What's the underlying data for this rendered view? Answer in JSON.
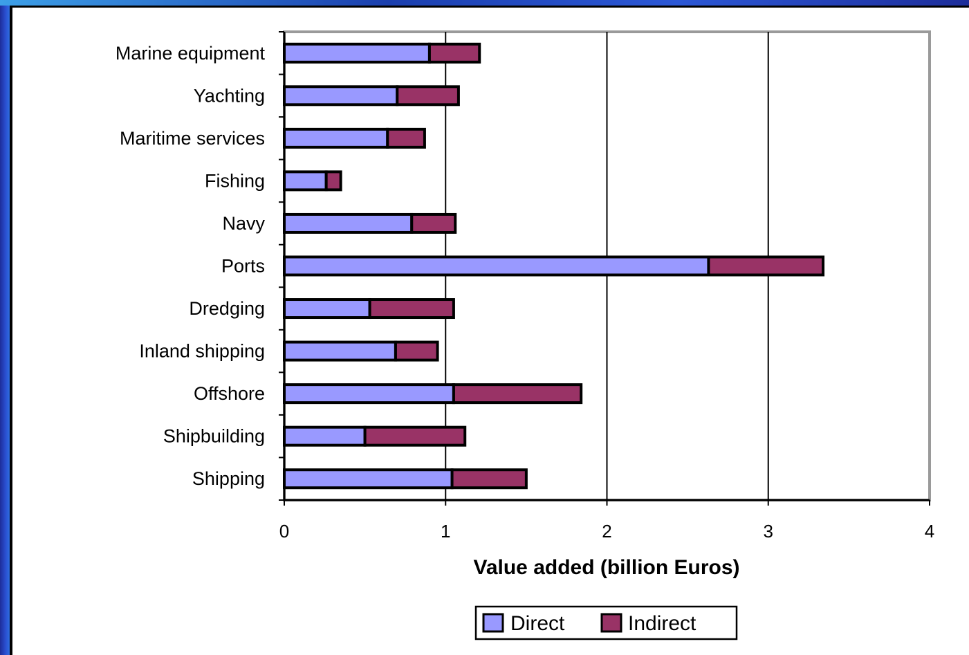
{
  "chart_data": {
    "type": "bar",
    "orientation": "horizontal",
    "stacked": true,
    "categories": [
      "Marine equipment",
      "Yachting",
      "Maritime services",
      "Fishing",
      "Navy",
      "Ports",
      "Dredging",
      "Inland shipping",
      "Offshore",
      "Shipbuilding",
      "Shipping"
    ],
    "series": [
      {
        "name": "Direct",
        "color": "#9999ff",
        "values": [
          0.9,
          0.7,
          0.64,
          0.26,
          0.79,
          2.63,
          0.53,
          0.69,
          1.05,
          0.5,
          1.04
        ]
      },
      {
        "name": "Indirect",
        "color": "#993366",
        "values": [
          0.31,
          0.38,
          0.23,
          0.09,
          0.27,
          0.71,
          0.52,
          0.26,
          0.79,
          0.62,
          0.46
        ]
      }
    ],
    "xlabel": "Value added (billion Euros)",
    "ylabel": "",
    "xlim": [
      0,
      4
    ],
    "xticks": [
      "0",
      "1",
      "2",
      "3",
      "4"
    ],
    "grid": "vertical",
    "legend_position": "bottom"
  }
}
